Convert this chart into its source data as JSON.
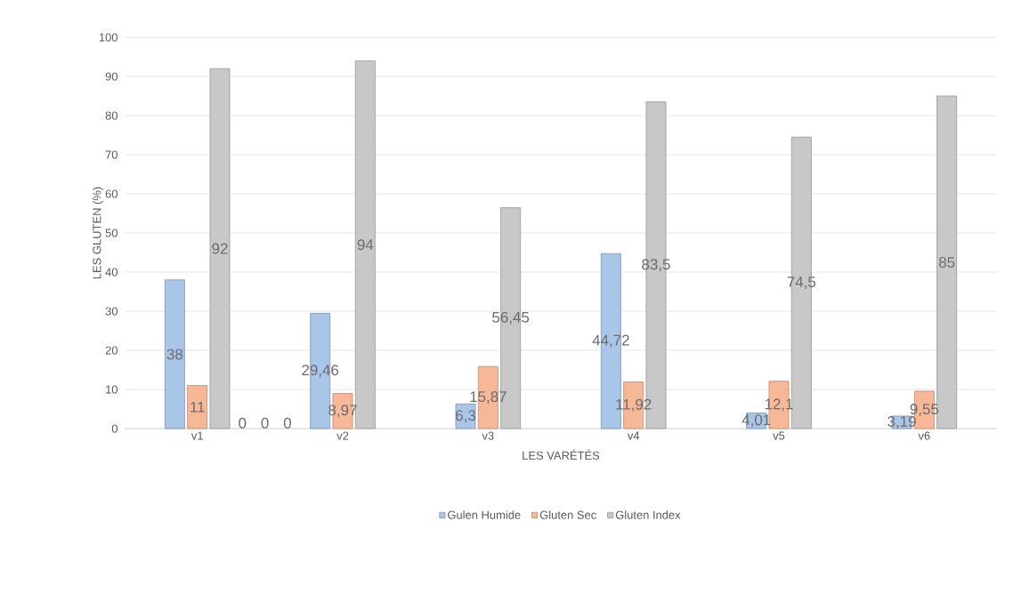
{
  "chart_data": {
    "type": "bar",
    "xlabel": "LES VARÉTÉS",
    "ylabel": "LES GLUTEN (%)",
    "categories": [
      "v1",
      "v2",
      "v3",
      "v4",
      "v5",
      "v6"
    ],
    "series": [
      {
        "name": "Gulen Humide",
        "color": "#a9c5e8",
        "values": [
          38,
          29.46,
          6.3,
          44.72,
          4.01,
          3.19
        ],
        "value_labels": [
          "38",
          "29,46",
          "6,3",
          "44,72",
          "4,01",
          "3,19"
        ]
      },
      {
        "name": "Gluten Sec",
        "color": "#f7b897",
        "values": [
          11,
          8.97,
          15.87,
          11.92,
          12.1,
          9.55
        ],
        "value_labels": [
          "11",
          "8,97",
          "15,87",
          "11,92",
          "12,1",
          "9,55"
        ]
      },
      {
        "name": "Gluten Index",
        "color": "#c8c8c8",
        "values": [
          92,
          94,
          56.45,
          83.5,
          74.5,
          85
        ],
        "value_labels": [
          "92",
          "94",
          "56,45",
          "83,5",
          "74,5",
          "85"
        ]
      }
    ],
    "annotations": [
      "0",
      "0",
      "0"
    ],
    "ylim": [
      0,
      100
    ],
    "yticks": [
      0,
      10,
      20,
      30,
      40,
      50,
      60,
      70,
      80,
      90,
      100
    ],
    "grid": "y",
    "legend": "bottom"
  }
}
